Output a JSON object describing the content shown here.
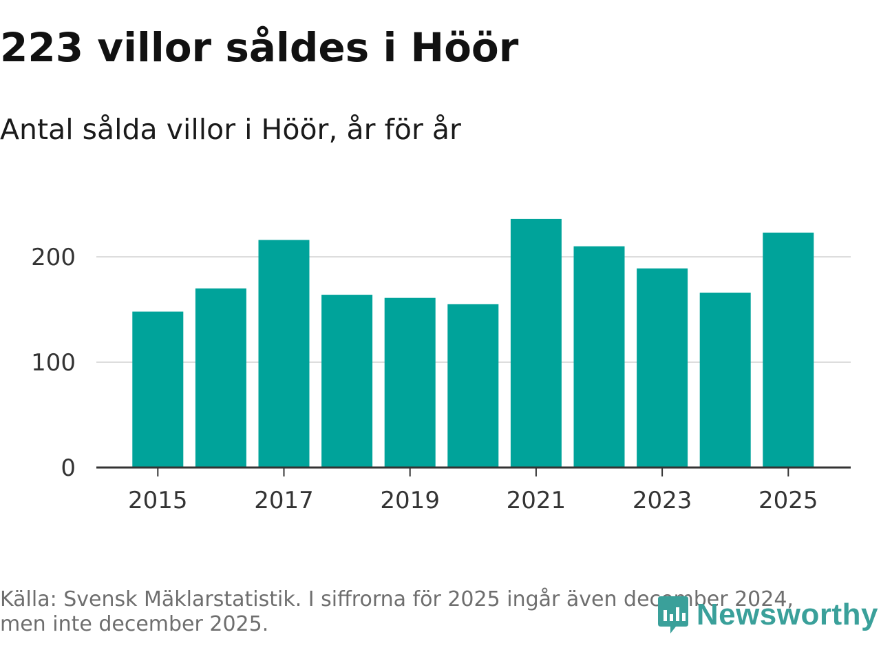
{
  "header": {
    "title": "223 villor såldes i Höör",
    "subtitle": "Antal sålda villor i Höör, år för år"
  },
  "footer": {
    "source_line1": "Källa: Svensk Mäklarstatistik. I siffrorna för 2025 ingår även december 2024,",
    "source_line2": "men inte december 2025."
  },
  "brand": {
    "name": "Newsworthy",
    "color": "#3aa09a"
  },
  "colors": {
    "bar": "#00a39a",
    "grid": "#dddddd",
    "axis": "#333333"
  },
  "chart_data": {
    "type": "bar",
    "title": "223 villor såldes i Höör",
    "subtitle": "Antal sålda villor i Höör, år för år",
    "xlabel": "",
    "ylabel": "",
    "categories": [
      "2015",
      "2016",
      "2017",
      "2018",
      "2019",
      "2020",
      "2021",
      "2022",
      "2023",
      "2024",
      "2025"
    ],
    "values": [
      148,
      170,
      216,
      164,
      161,
      155,
      236,
      210,
      189,
      166,
      223
    ],
    "ylim": [
      0,
      250
    ],
    "yticks": [
      0,
      100,
      200
    ],
    "ytick_labels": [
      "0",
      "100",
      "200"
    ],
    "xtick_labels": [
      "2015",
      "2017",
      "2019",
      "2021",
      "2023",
      "2025"
    ],
    "grid": true,
    "legend": "none"
  }
}
